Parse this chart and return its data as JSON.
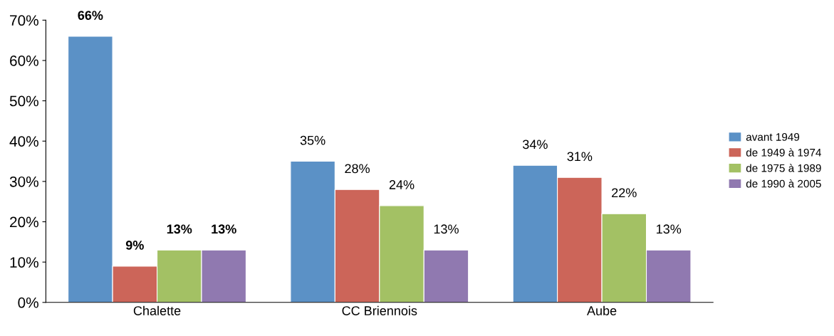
{
  "chart_data": {
    "type": "bar",
    "categories": [
      "Chalette",
      "CC Briennois",
      "Aube"
    ],
    "series": [
      {
        "name": "avant 1949",
        "color": "#5b91c6",
        "values": [
          66,
          35,
          34
        ],
        "value_labels": [
          "66%",
          "35%",
          "34%"
        ]
      },
      {
        "name": "de 1949 à 1974",
        "color": "#cc6559",
        "values": [
          9,
          28,
          31
        ],
        "value_labels": [
          "9%",
          "28%",
          "31%"
        ]
      },
      {
        "name": "de 1975 à 1989",
        "color": "#a3c164",
        "values": [
          13,
          24,
          22
        ],
        "value_labels": [
          "13%",
          "24%",
          "22%"
        ]
      },
      {
        "name": "de 1990 à 2005",
        "color": "#9079b0",
        "values": [
          13,
          13,
          13
        ],
        "value_labels": [
          "13%",
          "13%",
          "13%"
        ]
      }
    ],
    "ylim": [
      0,
      70
    ],
    "yticks": [
      {
        "value": 0,
        "label": "0%"
      },
      {
        "value": 10,
        "label": "10%"
      },
      {
        "value": 20,
        "label": "20%"
      },
      {
        "value": 30,
        "label": "30%"
      },
      {
        "value": 40,
        "label": "40%"
      },
      {
        "value": 50,
        "label": "50%"
      },
      {
        "value": 60,
        "label": "60%"
      },
      {
        "value": 70,
        "label": "70%"
      }
    ],
    "grid": false,
    "legend": "right"
  }
}
